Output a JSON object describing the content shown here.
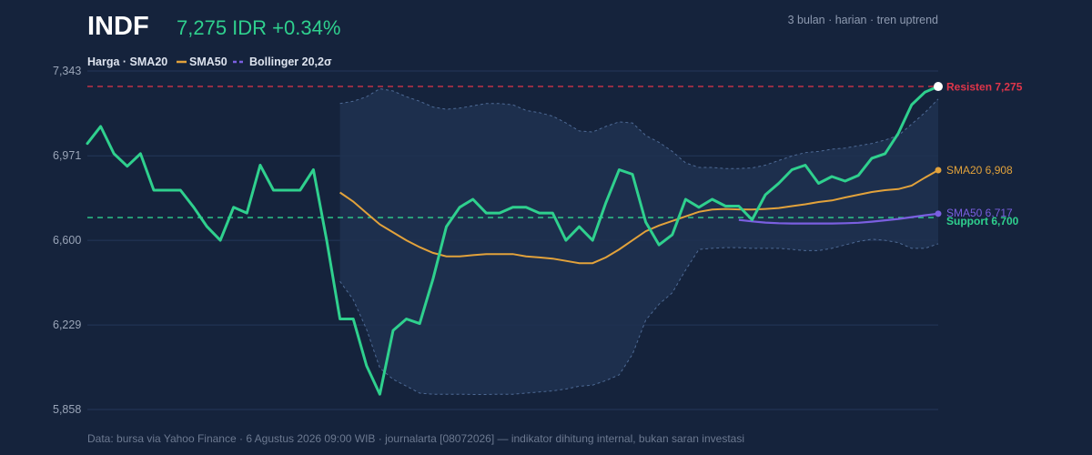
{
  "header": {
    "ticker": "INDF",
    "price_change": "7,275 IDR +0.34%",
    "meta": "3 bulan · harian · tren uptrend"
  },
  "legend": {
    "price": "Harga · SMA20",
    "sma50": "SMA50",
    "bollinger": "Bollinger 20,2σ"
  },
  "footer": "Data: bursa via Yahoo Finance · 6 Agustus 2026 09:00 WIB · journalarta [08072026] — indikator dihitung internal, bukan saran investasi",
  "colors": {
    "background": "#15233c",
    "price": "#2fd08e",
    "sma20": "#e2a23b",
    "sma50": "#7a5fe0",
    "band_fill": "#1f3150",
    "band_edge": "#4e6a95",
    "resistance": "#e0354a",
    "support": "#2fd08e",
    "grid": "#25375a"
  },
  "chart_data": {
    "type": "line",
    "title": "INDF",
    "ylim": [
      5858,
      7343
    ],
    "y_ticks": [
      5858,
      6229,
      6600,
      6971,
      7343
    ],
    "y_tick_labels": [
      "5,858",
      "6,229",
      "6,600",
      "6,971",
      "7,343"
    ],
    "series": [
      {
        "name": "Harga",
        "start_index": 0,
        "values": [
          7025,
          7100,
          6980,
          6925,
          6980,
          6820,
          6820,
          6820,
          6745,
          6660,
          6600,
          6745,
          6720,
          6930,
          6820,
          6820,
          6820,
          6910,
          6600,
          6255,
          6255,
          6050,
          5925,
          6205,
          6255,
          6235,
          6430,
          6660,
          6745,
          6780,
          6720,
          6720,
          6745,
          6745,
          6720,
          6720,
          6600,
          6660,
          6600,
          6765,
          6910,
          6890,
          6680,
          6580,
          6625,
          6780,
          6745,
          6780,
          6750,
          6750,
          6690,
          6800,
          6850,
          6910,
          6930,
          6850,
          6880,
          6860,
          6885,
          6960,
          6980,
          7070,
          7195,
          7250,
          7275
        ]
      },
      {
        "name": "SMA20",
        "start_index": 19,
        "values": [
          6810,
          6770,
          6720,
          6670,
          6635,
          6600,
          6570,
          6545,
          6530,
          6530,
          6535,
          6540,
          6540,
          6540,
          6530,
          6525,
          6520,
          6510,
          6500,
          6500,
          6525,
          6560,
          6600,
          6640,
          6665,
          6685,
          6705,
          6725,
          6735,
          6738,
          6736,
          6735,
          6738,
          6742,
          6750,
          6758,
          6768,
          6775,
          6788,
          6800,
          6812,
          6820,
          6825,
          6840,
          6875,
          6908
        ]
      },
      {
        "name": "SMA50",
        "start_index": 49,
        "values": [
          6690,
          6683,
          6678,
          6675,
          6674,
          6674,
          6674,
          6674,
          6675,
          6677,
          6682,
          6688,
          6694,
          6702,
          6710,
          6717
        ]
      },
      {
        "name": "Bollinger 20,2σ upper",
        "start_index": 19,
        "values": [
          7200,
          7210,
          7230,
          7265,
          7255,
          7230,
          7210,
          7185,
          7175,
          7180,
          7190,
          7200,
          7200,
          7195,
          7170,
          7160,
          7145,
          7115,
          7080,
          7075,
          7100,
          7120,
          7115,
          7060,
          7030,
          6990,
          6940,
          6920,
          6920,
          6915,
          6915,
          6918,
          6930,
          6950,
          6970,
          6985,
          6990,
          7000,
          7005,
          7015,
          7025,
          7040,
          7060,
          7110,
          7160,
          7220
        ]
      },
      {
        "name": "Bollinger 20,2σ lower",
        "start_index": 19,
        "values": [
          6420,
          6340,
          6210,
          6040,
          5990,
          5960,
          5930,
          5925,
          5925,
          5925,
          5924,
          5924,
          5925,
          5925,
          5930,
          5935,
          5940,
          5948,
          5960,
          5965,
          5985,
          6010,
          6100,
          6250,
          6320,
          6370,
          6470,
          6560,
          6565,
          6568,
          6568,
          6565,
          6565,
          6565,
          6560,
          6555,
          6555,
          6565,
          6580,
          6595,
          6605,
          6600,
          6590,
          6565,
          6565,
          6585
        ]
      }
    ],
    "levels": {
      "resistance": {
        "label": "Resisten 7,275",
        "value": 7275
      },
      "support": {
        "label": "Support 6,700",
        "value": 6700
      }
    },
    "end_labels": {
      "sma20": "SMA20 6,908",
      "sma50": "SMA50 6,717"
    },
    "grid": true,
    "legend_position": "top-left"
  }
}
